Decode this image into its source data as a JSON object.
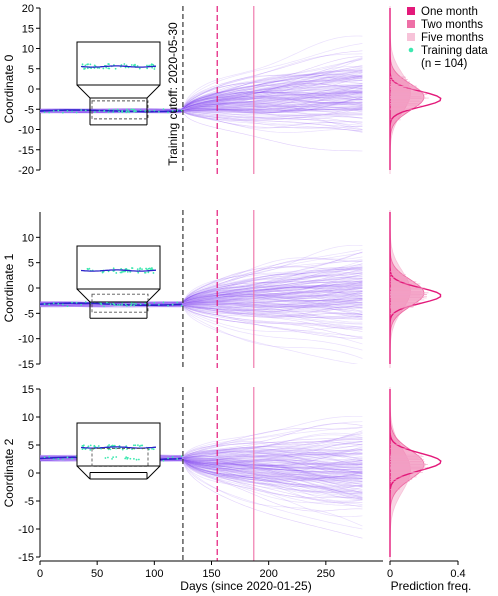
{
  "figure": {
    "xlabel": "Days (since 2020-01-25)",
    "freq_label": "Prediction freq.",
    "cutoff_label": "Training cutoff: 2020-05-30",
    "legend": [
      {
        "label": "One month",
        "color": "#e3197a",
        "marker": "square"
      },
      {
        "label": "Two months",
        "color": "#ee6fa6",
        "marker": "square"
      },
      {
        "label": "Five months",
        "color": "#f7c3d9",
        "marker": "square"
      },
      {
        "label": "Training data",
        "color": "#3ee8b0",
        "marker": "dot"
      },
      {
        "label": "(n = 104)",
        "color": "",
        "marker": "none"
      }
    ],
    "colors": {
      "trajectory": "#7b3cf2",
      "trajectory_light": "#c9a9f7",
      "fit_line": "#2a23c9",
      "training_data": "#3ee8b0",
      "one_month": "#e3197a",
      "two_months": "#ee6fa6",
      "five_months": "#f7c3d9",
      "cutoff_line": "#444444"
    }
  },
  "chart_data": [
    {
      "type": "line",
      "ylabel": "Coordinate 0",
      "ylim": [
        -20,
        20
      ],
      "yticks": [
        -20,
        -15,
        -10,
        -5,
        0,
        5,
        10,
        15,
        20
      ],
      "xlim": [
        0,
        300
      ],
      "xticks": [
        0,
        50,
        100,
        150,
        200,
        250
      ],
      "cutoff_day": 125,
      "horizons_days": {
        "one_month": 155,
        "two_months": 187,
        "five_months": 280
      },
      "train_level": -5.4,
      "forecast_end_mean": -1.0,
      "forecast_spread_sd": 5.0,
      "freq_xlim": [
        0,
        0.4
      ],
      "freq_xticks": [
        0,
        0.4
      ],
      "density_peaks": {
        "one_month": -2.5,
        "two_months": -2.0,
        "five_months": -1.0
      }
    },
    {
      "type": "line",
      "ylabel": "Coordinate 1",
      "ylim": [
        -15,
        15
      ],
      "yticks": [
        -15,
        -10,
        -5,
        0,
        5,
        10
      ],
      "xlim": [
        0,
        300
      ],
      "xticks": [
        0,
        50,
        100,
        150,
        200,
        250
      ],
      "cutoff_day": 125,
      "horizons_days": {
        "one_month": 155,
        "two_months": 187,
        "five_months": 280
      },
      "train_level": -3.2,
      "forecast_end_mean": -0.8,
      "forecast_spread_sd": 4.0,
      "freq_xlim": [
        0,
        0.4
      ],
      "freq_xticks": [
        0,
        0.4
      ],
      "density_peaks": {
        "one_month": -1.5,
        "two_months": -1.0,
        "five_months": -0.5
      }
    },
    {
      "type": "line",
      "ylabel": "Coordinate 2",
      "ylim": [
        -15,
        15
      ],
      "yticks": [
        -15,
        -10,
        -5,
        0,
        5,
        10,
        15
      ],
      "xlim": [
        0,
        300
      ],
      "xticks": [
        0,
        50,
        100,
        150,
        200,
        250
      ],
      "cutoff_day": 125,
      "horizons_days": {
        "one_month": 155,
        "two_months": 187,
        "five_months": 280
      },
      "train_level": 2.6,
      "forecast_end_mean": 0.0,
      "forecast_spread_sd": 4.0,
      "freq_xlim": [
        0,
        0.4
      ],
      "freq_xticks": [
        0,
        0.4
      ],
      "density_peaks": {
        "one_month": 2.0,
        "two_months": 1.5,
        "five_months": 0.5
      }
    }
  ]
}
